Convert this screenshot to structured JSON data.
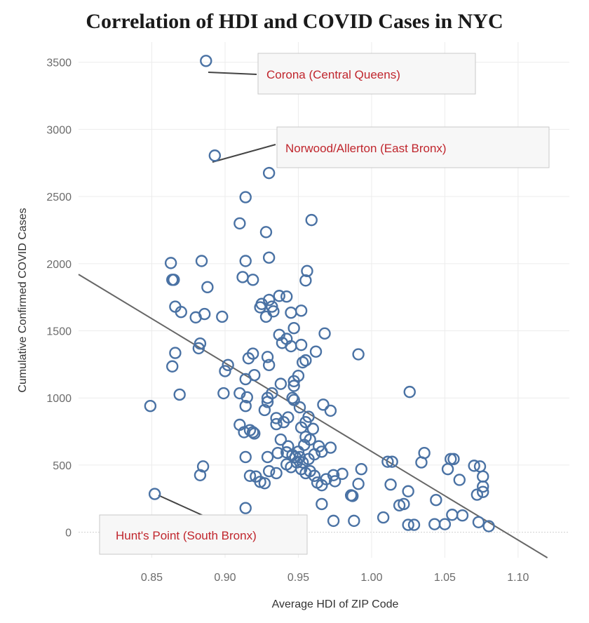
{
  "chart_data": {
    "type": "scatter",
    "title": "Correlation of HDI and COVID Cases in NYC",
    "xlabel": "Average HDI of ZIP Code",
    "ylabel": "Cumulative Confirmed COVID Cases",
    "xlim": [
      0.8,
      1.135
    ],
    "ylim": [
      -190,
      3650
    ],
    "xticks": [
      "0.85",
      "0.90",
      "0.95",
      "1.00",
      "1.05",
      "1.10"
    ],
    "yticks": [
      "0",
      "500",
      "1000",
      "1500",
      "2000",
      "2500",
      "3000",
      "3500"
    ],
    "grid": true,
    "marker_color": "#4a72a4",
    "trendline": {
      "x1": 0.8,
      "y1": 1920,
      "x2": 1.12,
      "y2": -190,
      "color": "#666666"
    },
    "annotations": [
      {
        "label": "Corona (Central Queens)",
        "x": 0.887,
        "y": 3510
      },
      {
        "label": "Norwood/Allerton (East Bronx)",
        "x": 0.893,
        "y": 2805
      },
      {
        "label": "Hunt's Point (South Bronx)",
        "x": 0.852,
        "y": 285
      }
    ],
    "points": [
      [
        0.887,
        3510
      ],
      [
        0.893,
        2805
      ],
      [
        0.93,
        2675
      ],
      [
        0.914,
        2495
      ],
      [
        0.959,
        2325
      ],
      [
        0.91,
        2300
      ],
      [
        0.928,
        2235
      ],
      [
        0.863,
        2005
      ],
      [
        0.884,
        2020
      ],
      [
        0.914,
        2020
      ],
      [
        0.93,
        2045
      ],
      [
        0.864,
        1880
      ],
      [
        0.865,
        1880
      ],
      [
        0.888,
        1825
      ],
      [
        0.912,
        1900
      ],
      [
        0.919,
        1880
      ],
      [
        0.956,
        1945
      ],
      [
        0.955,
        1875
      ],
      [
        0.937,
        1760
      ],
      [
        0.925,
        1700
      ],
      [
        0.942,
        1755
      ],
      [
        0.93,
        1730
      ],
      [
        0.866,
        1680
      ],
      [
        0.87,
        1640
      ],
      [
        0.88,
        1600
      ],
      [
        0.886,
        1625
      ],
      [
        0.898,
        1605
      ],
      [
        0.924,
        1675
      ],
      [
        0.933,
        1645
      ],
      [
        0.928,
        1605
      ],
      [
        0.952,
        1650
      ],
      [
        0.945,
        1635
      ],
      [
        0.932,
        1680
      ],
      [
        0.937,
        1470
      ],
      [
        0.942,
        1440
      ],
      [
        0.939,
        1410
      ],
      [
        0.947,
        1520
      ],
      [
        0.968,
        1480
      ],
      [
        0.945,
        1385
      ],
      [
        0.883,
        1405
      ],
      [
        0.882,
        1370
      ],
      [
        0.866,
        1335
      ],
      [
        0.864,
        1235
      ],
      [
        0.902,
        1245
      ],
      [
        0.9,
        1200
      ],
      [
        0.916,
        1295
      ],
      [
        0.919,
        1330
      ],
      [
        0.929,
        1305
      ],
      [
        0.93,
        1245
      ],
      [
        0.952,
        1395
      ],
      [
        0.953,
        1265
      ],
      [
        0.955,
        1280
      ],
      [
        0.962,
        1345
      ],
      [
        0.991,
        1325
      ],
      [
        0.914,
        1140
      ],
      [
        0.92,
        1170
      ],
      [
        0.938,
        1105
      ],
      [
        0.95,
        1165
      ],
      [
        0.947,
        1125
      ],
      [
        0.932,
        1035
      ],
      [
        0.929,
        1000
      ],
      [
        0.929,
        970
      ],
      [
        0.91,
        1035
      ],
      [
        0.899,
        1035
      ],
      [
        0.869,
        1025
      ],
      [
        0.849,
        940
      ],
      [
        0.915,
        1005
      ],
      [
        0.914,
        940
      ],
      [
        0.927,
        910
      ],
      [
        0.935,
        850
      ],
      [
        0.947,
        1090
      ],
      [
        0.946,
        1000
      ],
      [
        0.947,
        985
      ],
      [
        0.951,
        930
      ],
      [
        0.967,
        950
      ],
      [
        0.972,
        905
      ],
      [
        1.026,
        1045
      ],
      [
        0.91,
        800
      ],
      [
        0.913,
        745
      ],
      [
        0.917,
        760
      ],
      [
        0.919,
        745
      ],
      [
        0.92,
        735
      ],
      [
        0.935,
        805
      ],
      [
        0.94,
        820
      ],
      [
        0.943,
        855
      ],
      [
        0.952,
        780
      ],
      [
        0.955,
        820
      ],
      [
        0.957,
        860
      ],
      [
        0.955,
        710
      ],
      [
        0.96,
        770
      ],
      [
        0.938,
        690
      ],
      [
        0.943,
        640
      ],
      [
        0.95,
        600
      ],
      [
        0.942,
        595
      ],
      [
        0.946,
        575
      ],
      [
        0.951,
        560
      ],
      [
        0.954,
        650
      ],
      [
        0.958,
        690
      ],
      [
        0.964,
        640
      ],
      [
        0.972,
        630
      ],
      [
        0.966,
        600
      ],
      [
        0.961,
        580
      ],
      [
        0.957,
        545
      ],
      [
        0.953,
        520
      ],
      [
        0.948,
        560
      ],
      [
        0.929,
        560
      ],
      [
        0.936,
        590
      ],
      [
        0.914,
        560
      ],
      [
        0.885,
        490
      ],
      [
        0.883,
        425
      ],
      [
        0.917,
        420
      ],
      [
        0.921,
        415
      ],
      [
        0.924,
        375
      ],
      [
        0.927,
        365
      ],
      [
        0.93,
        455
      ],
      [
        0.935,
        440
      ],
      [
        0.942,
        505
      ],
      [
        0.945,
        485
      ],
      [
        0.949,
        520
      ],
      [
        0.952,
        470
      ],
      [
        0.955,
        440
      ],
      [
        0.958,
        455
      ],
      [
        0.961,
        420
      ],
      [
        0.963,
        370
      ],
      [
        0.966,
        350
      ],
      [
        0.969,
        395
      ],
      [
        0.974,
        425
      ],
      [
        0.975,
        380
      ],
      [
        0.98,
        435
      ],
      [
        0.986,
        275
      ],
      [
        0.987,
        270
      ],
      [
        0.991,
        360
      ],
      [
        0.993,
        470
      ],
      [
        1.011,
        525
      ],
      [
        1.014,
        525
      ],
      [
        1.013,
        355
      ],
      [
        1.025,
        305
      ],
      [
        1.022,
        210
      ],
      [
        1.036,
        590
      ],
      [
        1.034,
        520
      ],
      [
        1.044,
        240
      ],
      [
        1.052,
        470
      ],
      [
        1.054,
        545
      ],
      [
        1.056,
        545
      ],
      [
        1.06,
        390
      ],
      [
        1.07,
        495
      ],
      [
        1.074,
        490
      ],
      [
        1.076,
        415
      ],
      [
        1.076,
        340
      ],
      [
        1.072,
        280
      ],
      [
        1.076,
        300
      ],
      [
        0.914,
        180
      ],
      [
        0.966,
        210
      ],
      [
        0.974,
        85
      ],
      [
        0.988,
        85
      ],
      [
        1.008,
        110
      ],
      [
        1.019,
        200
      ],
      [
        1.025,
        55
      ],
      [
        1.029,
        55
      ],
      [
        1.043,
        60
      ],
      [
        1.05,
        60
      ],
      [
        1.055,
        130
      ],
      [
        1.062,
        125
      ],
      [
        1.073,
        75
      ],
      [
        1.08,
        45
      ],
      [
        0.852,
        285
      ]
    ]
  }
}
